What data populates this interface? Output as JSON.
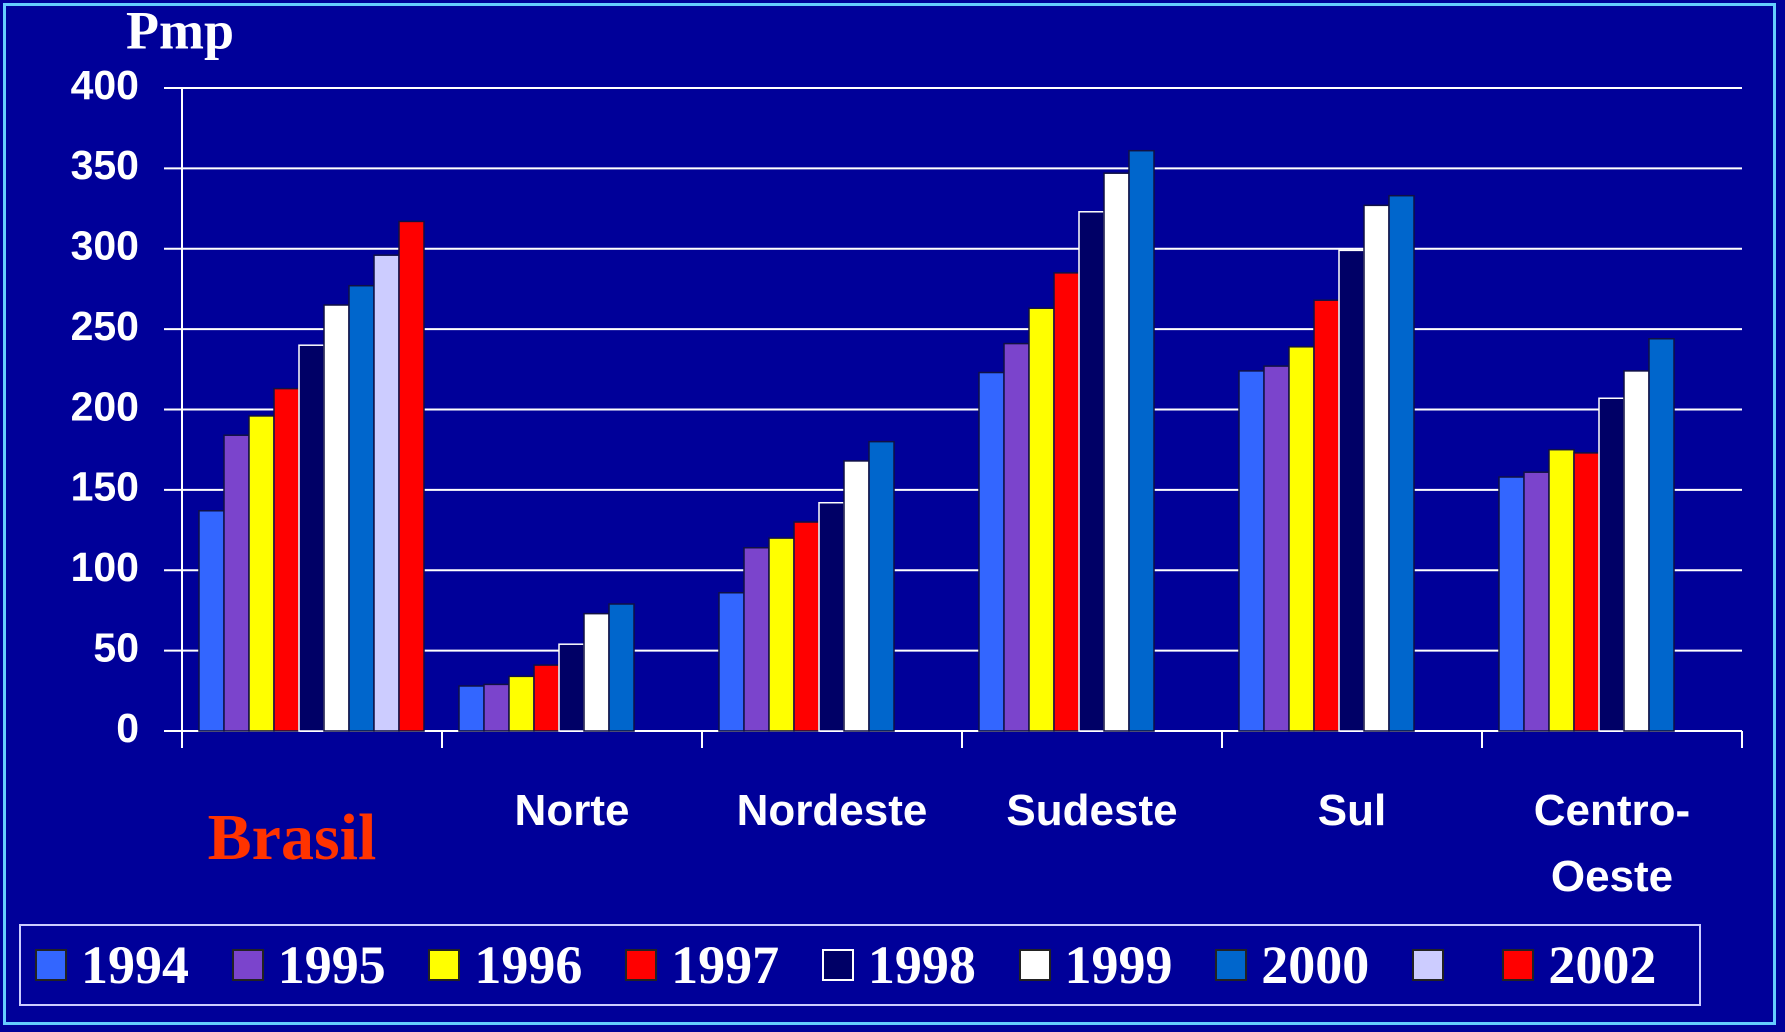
{
  "chart_data": {
    "type": "bar",
    "y_label": "Pmp",
    "categories": [
      "Brasil",
      "Norte",
      "Nordeste",
      "Sudeste",
      "Sul",
      "Centro-Oeste"
    ],
    "series": [
      {
        "name": "1994",
        "color": "#3366ff",
        "values": [
          137,
          28,
          86,
          223,
          224,
          158
        ]
      },
      {
        "name": "1995",
        "color": "#7b44cc",
        "values": [
          184,
          29,
          114,
          241,
          227,
          161
        ]
      },
      {
        "name": "1996",
        "color": "#ffff00",
        "values": [
          196,
          34,
          120,
          263,
          239,
          175
        ]
      },
      {
        "name": "1997",
        "color": "#ff0000",
        "values": [
          213,
          41,
          130,
          285,
          268,
          173
        ]
      },
      {
        "name": "1998",
        "color": "#000066",
        "values": [
          240,
          54,
          142,
          323,
          299,
          207
        ]
      },
      {
        "name": "1999",
        "color": "#ffffff",
        "values": [
          265,
          73,
          168,
          347,
          327,
          224
        ]
      },
      {
        "name": "2000",
        "color": "#0066cc",
        "values": [
          277,
          79,
          180,
          361,
          333,
          244
        ]
      },
      {
        "color": "#ccccff",
        "values": [
          296,
          null,
          null,
          null,
          null,
          null
        ]
      },
      {
        "name": "2002",
        "color": "#ff0000",
        "values": [
          317,
          null,
          null,
          null,
          null,
          null
        ]
      }
    ],
    "ylim": [
      0,
      400
    ],
    "yticks": [
      0,
      50,
      100,
      150,
      200,
      250,
      300,
      350,
      400
    ],
    "grid": true
  }
}
